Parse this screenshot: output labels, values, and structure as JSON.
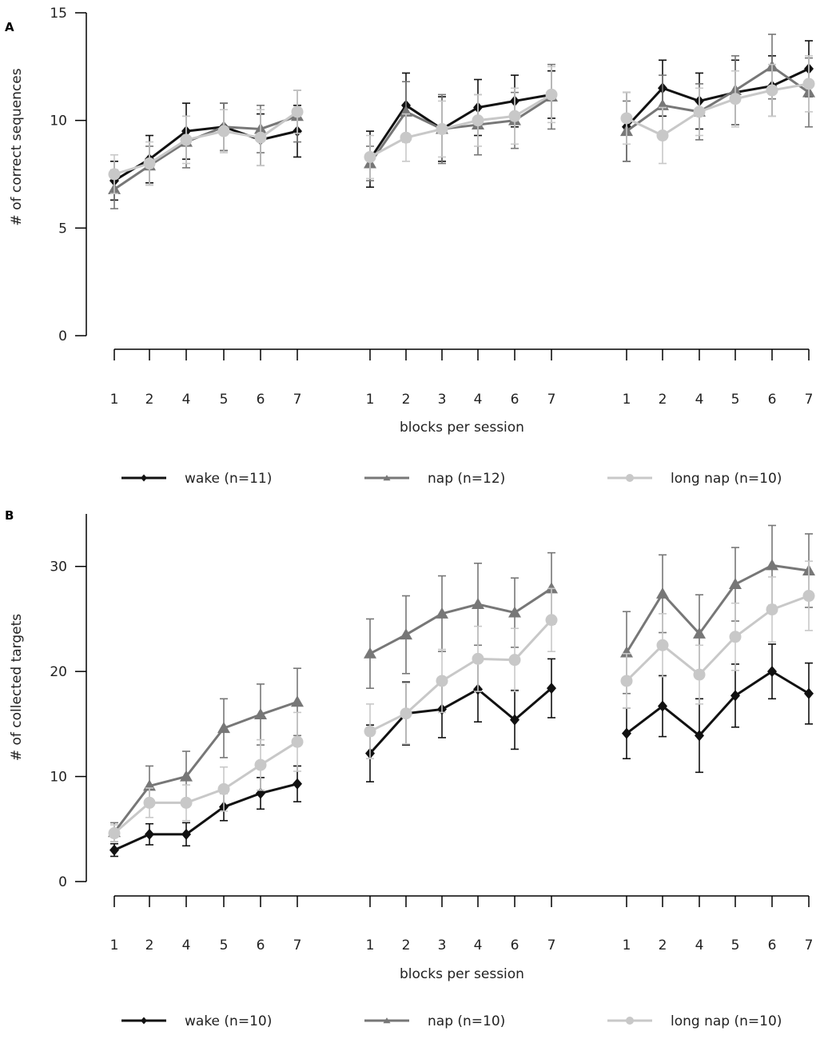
{
  "chart_data": [
    {
      "panel": "A",
      "type": "line",
      "ylabel": "# of correct sequences",
      "xlabel": "blocks per session",
      "ylim": [
        0,
        15
      ],
      "yticks": [
        0,
        5,
        10,
        15
      ],
      "sessions": [
        {
          "categories": [
            "1",
            "2",
            "4",
            "5",
            "6",
            "7"
          ]
        },
        {
          "categories": [
            "1",
            "2",
            "3",
            "4",
            "6",
            "7"
          ]
        },
        {
          "categories": [
            "1",
            "2",
            "4",
            "5",
            "6",
            "7"
          ]
        }
      ],
      "series": [
        {
          "name": "wake (n=11)",
          "color": "#111111",
          "marker": "diamond",
          "values": [
            [
              7.2,
              8.2,
              9.5,
              9.7,
              9.1,
              9.5
            ],
            [
              8.2,
              10.7,
              9.6,
              10.6,
              10.9,
              11.2
            ],
            [
              9.7,
              11.5,
              10.9,
              11.3,
              11.6,
              12.4
            ]
          ],
          "errors": [
            [
              0.9,
              1.1,
              1.3,
              1.1,
              1.2,
              1.2
            ],
            [
              1.3,
              1.5,
              1.5,
              1.3,
              1.2,
              1.1
            ],
            [
              1.6,
              1.3,
              1.3,
              1.5,
              1.4,
              1.3
            ]
          ]
        },
        {
          "name": "nap (n=12)",
          "color": "#777777",
          "marker": "triangle",
          "values": [
            [
              6.8,
              7.9,
              9.0,
              9.7,
              9.6,
              10.2
            ],
            [
              8.0,
              10.4,
              9.6,
              9.8,
              10.0,
              11.1
            ],
            [
              9.5,
              10.7,
              10.4,
              11.4,
              12.5,
              11.3
            ]
          ],
          "errors": [
            [
              0.9,
              0.9,
              1.2,
              1.1,
              1.1,
              1.2
            ],
            [
              0.8,
              1.4,
              1.6,
              1.4,
              1.3,
              1.5
            ],
            [
              1.4,
              1.4,
              1.3,
              1.6,
              1.5,
              1.6
            ]
          ]
        },
        {
          "name": "long nap (n=10)",
          "color": "#c8c8c8",
          "marker": "circle",
          "values": [
            [
              7.5,
              8.0,
              9.1,
              9.5,
              9.2,
              10.4
            ],
            [
              8.3,
              9.2,
              9.6,
              10.0,
              10.2,
              11.2
            ],
            [
              10.1,
              9.3,
              10.4,
              11.0,
              11.4,
              11.7
            ]
          ],
          "errors": [
            [
              0.9,
              1.0,
              1.1,
              1.0,
              1.3,
              1.0
            ],
            [
              1.0,
              1.1,
              1.3,
              1.2,
              1.3,
              1.3
            ],
            [
              1.2,
              1.3,
              1.1,
              1.3,
              1.2,
              1.3
            ]
          ]
        }
      ],
      "legend": [
        "wake (n=11)",
        "nap (n=12)",
        "long nap (n=10)"
      ]
    },
    {
      "panel": "B",
      "type": "line",
      "ylabel": "# of collected targets",
      "xlabel": "blocks per session",
      "ylim": [
        0,
        35
      ],
      "yticks": [
        0,
        10,
        20,
        30
      ],
      "sessions": [
        {
          "categories": [
            "1",
            "2",
            "4",
            "5",
            "6",
            "7"
          ]
        },
        {
          "categories": [
            "1",
            "2",
            "3",
            "4",
            "6",
            "7"
          ]
        },
        {
          "categories": [
            "1",
            "2",
            "4",
            "5",
            "6",
            "7"
          ]
        }
      ],
      "series": [
        {
          "name": "wake (n=10)",
          "color": "#111111",
          "marker": "diamond",
          "values": [
            [
              3.0,
              4.5,
              4.5,
              7.1,
              8.4,
              9.3
            ],
            [
              12.2,
              16.0,
              16.4,
              18.3,
              15.4,
              18.4
            ],
            [
              14.1,
              16.7,
              13.9,
              17.7,
              20.0,
              17.9
            ]
          ],
          "errors": [
            [
              0.6,
              1.0,
              1.1,
              1.3,
              1.5,
              1.7
            ],
            [
              2.7,
              3.0,
              2.7,
              3.1,
              2.8,
              2.8
            ],
            [
              2.4,
              2.9,
              3.5,
              3.0,
              2.6,
              2.9
            ]
          ]
        },
        {
          "name": "nap (n=10)",
          "color": "#777777",
          "marker": "triangle",
          "values": [
            [
              4.7,
              9.1,
              10.0,
              14.6,
              15.9,
              17.1
            ],
            [
              21.7,
              23.5,
              25.5,
              26.4,
              25.6,
              27.9
            ],
            [
              21.8,
              27.4,
              23.6,
              28.3,
              30.1,
              29.6
            ]
          ],
          "errors": [
            [
              0.9,
              1.9,
              2.4,
              2.8,
              2.9,
              3.2
            ],
            [
              3.3,
              3.7,
              3.6,
              3.9,
              3.3,
              3.4
            ],
            [
              3.9,
              3.7,
              3.7,
              3.5,
              3.8,
              3.5
            ]
          ]
        },
        {
          "name": "long nap (n=10)",
          "color": "#c8c8c8",
          "marker": "circle",
          "values": [
            [
              4.6,
              7.5,
              7.5,
              8.8,
              11.1,
              13.3
            ],
            [
              14.3,
              16.0,
              19.1,
              21.2,
              21.1,
              24.9
            ],
            [
              19.1,
              22.5,
              19.7,
              23.3,
              25.9,
              27.2
            ]
          ],
          "errors": [
            [
              0.8,
              1.4,
              1.7,
              2.1,
              2.4,
              2.8
            ],
            [
              2.6,
              2.9,
              3.0,
              3.1,
              3.0,
              3.0
            ],
            [
              2.6,
              3.0,
              2.8,
              3.2,
              3.1,
              3.3
            ]
          ]
        }
      ],
      "legend": [
        "wake (n=10)",
        "nap (n=10)",
        "long nap (n=10)"
      ]
    }
  ]
}
